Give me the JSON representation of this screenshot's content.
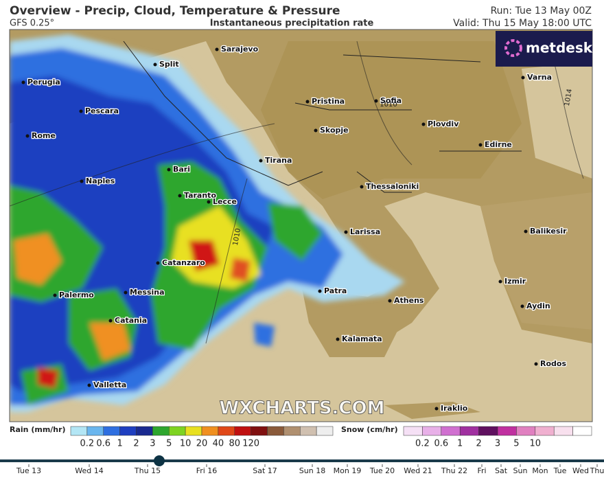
{
  "header": {
    "title": "Overview - Precip, Cloud, Temperature & Pressure",
    "model": "GFS 0.25°",
    "subtitle": "Instantaneous precipitation rate",
    "run": "Run: Tue 13 May 00Z",
    "valid": "Valid: Thu 15 May 18:00 UTC"
  },
  "logo": "metdesk",
  "watermark": "WXCHARTS.COM",
  "cities": [
    "Sarajevo",
    "Split",
    "Perugia",
    "Pristina",
    "Sofia",
    "Pescara",
    "Plovdiv",
    "Skopje",
    "Rome",
    "Edirne",
    "Tirana",
    "Bari",
    "Naples",
    "Thessaloniki",
    "Taranto",
    "Lecce",
    "Larissa",
    "Balikesir",
    "Catanzaro",
    "Izmir",
    "Palermo",
    "Messina",
    "Patra",
    "Athens",
    "Aydin",
    "Catania",
    "Kalamata",
    "Rodos",
    "Valletta",
    "Varna",
    "Iraklio"
  ],
  "isobars": [
    "1010",
    "1014",
    "1010"
  ],
  "legend": {
    "rain": {
      "title": "Rain (mm/hr)",
      "labels": [
        "0.2",
        "0.6",
        "1",
        "2",
        "3",
        "5",
        "10",
        "20",
        "40",
        "80",
        "120"
      ]
    },
    "snow": {
      "title": "Snow (cm/hr)",
      "labels": [
        "0.2",
        "0.6",
        "1",
        "2",
        "3",
        "5",
        "10"
      ]
    }
  },
  "timeline": [
    "Tue 13",
    "Wed 14",
    "Thu 15",
    "Fri 16",
    "Sat 17",
    "Sun 18",
    "Mon 19",
    "Tue 20",
    "Wed 21",
    "Thu 22",
    "Fri",
    "Sat",
    "Sun",
    "Mon",
    "Tue",
    "Wed",
    "Thu"
  ]
}
